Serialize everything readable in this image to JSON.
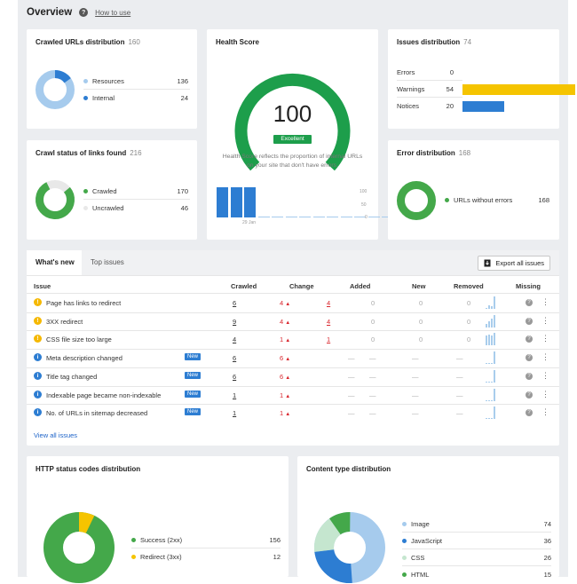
{
  "overview": {
    "title": "Overview",
    "help": "How to use",
    "help_icon": "question-circle-icon"
  },
  "crawled_urls": {
    "title": "Crawled URLs distribution",
    "count": "160",
    "items": [
      {
        "label": "Resources",
        "value": "136",
        "color": "#a6cbed"
      },
      {
        "label": "Internal",
        "value": "24",
        "color": "#2d7dd2"
      }
    ]
  },
  "crawl_status": {
    "title": "Crawl status of links found",
    "count": "216",
    "items": [
      {
        "label": "Crawled",
        "value": "170",
        "color": "#44a84a"
      },
      {
        "label": "Uncrawled",
        "value": "46",
        "color": "#e8e8e8"
      }
    ]
  },
  "health": {
    "title": "Health Score",
    "score": "100",
    "badge": "Excellent",
    "description": "Health Score reflects the proportion of internal URLs on your site that don't have errors.",
    "ticks": [
      "100",
      "50",
      "0"
    ],
    "date_label": "29 Jan",
    "bars": [
      100,
      100,
      100,
      0,
      0,
      0,
      0,
      0,
      0,
      0,
      0,
      0,
      0,
      0
    ]
  },
  "issues_dist": {
    "title": "Issues distribution",
    "count": "74",
    "items": [
      {
        "label": "Errors",
        "value": "0",
        "fraction": 0,
        "color": "#d9272e"
      },
      {
        "label": "Warnings",
        "value": "54",
        "fraction": 1,
        "color": "#f5c400"
      },
      {
        "label": "Notices",
        "value": "20",
        "fraction": 0.37,
        "color": "#2d7dd2"
      }
    ]
  },
  "error_dist": {
    "title": "Error distribution",
    "count": "168",
    "items": [
      {
        "label": "URLs without errors",
        "value": "168",
        "color": "#44a84a"
      }
    ]
  },
  "issues_table": {
    "tabs": [
      "What's new",
      "Top issues"
    ],
    "export_label": "Export all issues",
    "export_icon": "export-icon",
    "headers": [
      "Issue",
      "Crawled",
      "Change",
      "Added",
      "New",
      "Removed",
      "Missing"
    ],
    "rows": [
      {
        "type": "warning",
        "issue": "Page has links to redirect",
        "is_new": false,
        "crawled": "6",
        "change": "4",
        "added": "4",
        "new": "0",
        "removed": "0",
        "spark": [
          10,
          30,
          20,
          100
        ]
      },
      {
        "type": "warning",
        "issue": "3XX redirect",
        "is_new": false,
        "crawled": "9",
        "change": "4",
        "added": "4",
        "new": "0",
        "removed": "0",
        "spark": [
          30,
          50,
          70,
          100
        ]
      },
      {
        "type": "warning",
        "issue": "CSS file size too large",
        "is_new": false,
        "crawled": "4",
        "change": "1",
        "added": "1",
        "new": "0",
        "removed": "0",
        "spark": [
          80,
          90,
          80,
          100
        ]
      },
      {
        "type": "info",
        "issue": "Meta description changed",
        "is_new": true,
        "crawled": "6",
        "change": "6",
        "added": "—",
        "new": "—",
        "removed": "—",
        "spark": [
          0,
          0,
          0,
          100
        ]
      },
      {
        "type": "info",
        "issue": "Title tag changed",
        "is_new": true,
        "crawled": "6",
        "change": "6",
        "added": "—",
        "new": "—",
        "removed": "—",
        "spark": [
          0,
          0,
          0,
          100
        ]
      },
      {
        "type": "info",
        "issue": "Indexable page became non-indexable",
        "is_new": true,
        "crawled": "1",
        "change": "1",
        "added": "—",
        "new": "—",
        "removed": "—",
        "spark": [
          0,
          0,
          0,
          100
        ]
      },
      {
        "type": "info",
        "issue": "No. of URLs in sitemap decreased",
        "is_new": true,
        "crawled": "1",
        "change": "1",
        "added": "—",
        "new": "—",
        "removed": "—",
        "spark": [
          0,
          0,
          0,
          100
        ]
      }
    ],
    "new_badge": "New",
    "view_all": "View all issues"
  },
  "http_status": {
    "title": "HTTP status codes distribution",
    "items": [
      {
        "label": "Success (2xx)",
        "value": "156",
        "color": "#44a84a"
      },
      {
        "label": "Redirect (3xx)",
        "value": "12",
        "color": "#f5c400"
      }
    ]
  },
  "content_type": {
    "title": "Content type distribution",
    "items": [
      {
        "label": "Image",
        "value": "74",
        "color": "#a6cbed"
      },
      {
        "label": "JavaScript",
        "value": "36",
        "color": "#2d7dd2"
      },
      {
        "label": "CSS",
        "value": "26",
        "color": "#c5e6cf"
      },
      {
        "label": "HTML",
        "value": "15",
        "color": "#44a84a"
      }
    ]
  }
}
